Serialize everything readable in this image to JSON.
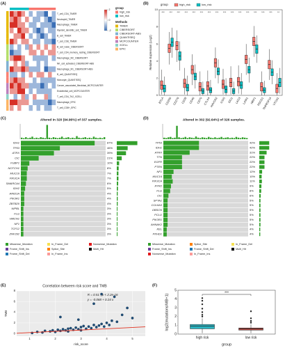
{
  "chart_data": [
    {
      "type": "heatmap",
      "panel": "(A)",
      "rows": [
        "T_cell_CD4_TIMER",
        "Neutrophil_TIMER",
        "Macrophage_TIMER",
        "Myeloid_dendritic_cell_TIMER",
        "B_cell_TIMER",
        "T_cell_CD8_TIMER",
        "B_cell_naive_CIBERSORT",
        "T_cell_CD4_memory_resting_CIBERSORT",
        "Macrophage_M2_CIBERSORT",
        "NK_cell_activated_CIBERSORT-ABS",
        "Macrophage_M1_CIBERSORT-ABS",
        "B_cell_QUANTISEQ",
        "Monocyte_QUANTISEQ",
        "Cancer_associated_fibroblast_MCPCOUNTER",
        "Endothelial_cell_MCPCOUNTER",
        "T_cell_CD4_Th2_XCELL",
        "Macrophage_EPIC",
        "T_cell_CD8+_EPIC"
      ],
      "values": [
        [
          2,
          1,
          2,
          1,
          0,
          -1,
          0,
          -1,
          -1,
          -2,
          0,
          -1
        ],
        [
          1,
          2,
          1,
          0,
          1,
          0,
          -1,
          -1,
          0,
          -1,
          -2,
          -1
        ],
        [
          2,
          2,
          1,
          1,
          0,
          -1,
          -1,
          0,
          -1,
          -1,
          -1,
          -2
        ],
        [
          1,
          0,
          2,
          1,
          1,
          0,
          -1,
          -2,
          -1,
          0,
          -1,
          -1
        ],
        [
          0,
          1,
          1,
          2,
          0,
          -1,
          0,
          -1,
          -2,
          -1,
          0,
          -1
        ],
        [
          2,
          1,
          0,
          1,
          1,
          0,
          -1,
          -1,
          0,
          -1,
          -1,
          -2
        ],
        [
          -1,
          0,
          -1,
          0,
          -1,
          1,
          0,
          1,
          0,
          1,
          0,
          1
        ],
        [
          -2,
          -1,
          -1,
          0,
          0,
          1,
          1,
          0,
          1,
          0,
          1,
          1
        ],
        [
          1,
          2,
          2,
          1,
          0,
          0,
          -1,
          -1,
          -1,
          -1,
          0,
          -1
        ],
        [
          0,
          1,
          0,
          1,
          -1,
          0,
          0,
          -1,
          0,
          -1,
          0,
          0
        ],
        [
          2,
          1,
          1,
          2,
          1,
          -1,
          -1,
          -1,
          0,
          -2,
          -1,
          -1
        ],
        [
          -1,
          -1,
          0,
          -1,
          0,
          1,
          0,
          1,
          1,
          0,
          1,
          0
        ],
        [
          1,
          2,
          1,
          1,
          0,
          0,
          -1,
          0,
          -1,
          -1,
          -1,
          -1
        ],
        [
          2,
          1,
          2,
          1,
          1,
          -1,
          -1,
          -1,
          -2,
          -1,
          0,
          -1
        ],
        [
          1,
          1,
          2,
          2,
          0,
          -1,
          0,
          -1,
          -1,
          -1,
          -1,
          0
        ],
        [
          0,
          -1,
          0,
          1,
          -1,
          0,
          1,
          0,
          0,
          1,
          -1,
          0
        ],
        [
          2,
          2,
          1,
          1,
          1,
          0,
          -1,
          -1,
          -1,
          -1,
          -2,
          -1
        ],
        [
          1,
          0,
          1,
          0,
          0,
          -1,
          0,
          -1,
          0,
          -1,
          -1,
          0
        ]
      ],
      "color_lim": [
        -2,
        2
      ],
      "color_ticks": [
        -2,
        0,
        2
      ],
      "column_groups": {
        "title": "group",
        "names": [
          "high_risk",
          "low_risk"
        ],
        "colors": [
          "#f8766d",
          "#00bfc4"
        ],
        "assignment": [
          1,
          1,
          1,
          1,
          1,
          0,
          0,
          0,
          0,
          0,
          0,
          0
        ]
      },
      "methods": {
        "title": "Methods",
        "names": [
          "TIMER",
          "CIBERSORT",
          "CIBERSORT-ABS",
          "QUANTISEQ",
          "MCPCOUNTER",
          "XCELL",
          "EPIC"
        ],
        "colors": [
          "#e6b800",
          "#b3de69",
          "#80b1d3",
          "#fb8072",
          "#bc80bd",
          "#8dd3c7",
          "#fdb462"
        ]
      },
      "row_methods": [
        0,
        0,
        0,
        0,
        0,
        0,
        1,
        1,
        1,
        2,
        2,
        3,
        3,
        4,
        4,
        5,
        6,
        6
      ]
    },
    {
      "type": "box",
      "panel": "(B)",
      "ylabel": "Relative Expression (Log2)",
      "legend_title": "group",
      "categories": [
        "BTLA",
        "CD200",
        "CD276",
        "CD28",
        "CD40",
        "CD70",
        "CTLA4",
        "HAVCR2",
        "ICOS",
        "IDO1",
        "LAG3",
        "LAIR1",
        "NRP1",
        "PDCD1",
        "TNFRSF14",
        "VTCN1"
      ],
      "significance": [
        "***",
        "***",
        "***",
        "***",
        "***",
        "***",
        "***",
        "***",
        "***",
        "***",
        "***",
        "***",
        "***",
        "***",
        "***",
        "**"
      ],
      "ylim": [
        0,
        10
      ],
      "yticks": [
        0,
        2,
        4,
        6,
        8,
        10
      ],
      "series": [
        {
          "name": "high_risk",
          "color": "#f8766d",
          "low": [
            0.1,
            3.6,
            3.9,
            0.1,
            1.2,
            0.0,
            0.0,
            2.0,
            0.1,
            0.1,
            0.2,
            2.4,
            4.5,
            0.0,
            1.8,
            0.0
          ],
          "q1": [
            0.7,
            5.0,
            5.3,
            0.9,
            2.5,
            0.5,
            0.6,
            3.3,
            0.8,
            1.0,
            1.1,
            3.7,
            5.8,
            0.5,
            3.1,
            0.3
          ],
          "median": [
            1.2,
            5.5,
            5.8,
            1.4,
            3.0,
            1.0,
            1.1,
            3.8,
            1.3,
            1.5,
            1.6,
            4.2,
            6.3,
            1.0,
            3.6,
            0.8
          ],
          "q3": [
            1.7,
            6.0,
            6.3,
            1.9,
            3.5,
            1.5,
            1.6,
            4.3,
            1.8,
            2.0,
            2.1,
            4.7,
            6.8,
            1.5,
            4.1,
            1.3
          ],
          "high": [
            3.0,
            7.4,
            7.6,
            3.2,
            4.8,
            2.8,
            2.9,
            5.6,
            3.1,
            3.4,
            3.5,
            6.0,
            8.1,
            2.8,
            5.4,
            2.6
          ]
        },
        {
          "name": "low_risk",
          "color": "#00bfc4",
          "low": [
            0.0,
            4.4,
            2.9,
            0.0,
            0.8,
            0.0,
            0.0,
            1.4,
            0.0,
            0.0,
            0.1,
            1.5,
            3.8,
            0.0,
            1.3,
            0.2
          ],
          "q1": [
            0.4,
            5.7,
            4.1,
            0.5,
            1.8,
            0.2,
            0.3,
            2.4,
            0.3,
            0.2,
            0.8,
            2.6,
            4.9,
            0.3,
            2.3,
            1.0
          ],
          "median": [
            0.8,
            6.2,
            4.6,
            0.9,
            2.2,
            0.5,
            0.6,
            2.8,
            0.7,
            0.5,
            1.2,
            3.0,
            5.4,
            0.6,
            2.7,
            1.5
          ],
          "q3": [
            1.2,
            6.7,
            5.1,
            1.3,
            2.6,
            0.8,
            0.9,
            3.2,
            1.1,
            0.8,
            1.6,
            3.4,
            5.9,
            0.9,
            3.1,
            2.0
          ],
          "high": [
            2.2,
            7.9,
            6.3,
            2.3,
            3.6,
            1.6,
            1.8,
            4.2,
            2.0,
            1.6,
            2.6,
            4.4,
            7.0,
            1.7,
            4.1,
            3.2
          ]
        }
      ]
    },
    {
      "type": "oncoplot",
      "panel": "(C)",
      "title": "Altered in 320 (94.96%) of 337 samples.",
      "genes": [
        "IDH1",
        "TP53",
        "ATRX",
        "CIC",
        "FUBP1",
        "NOTCH1",
        "MUC16",
        "PIK3CA",
        "SMARCA4",
        "IDH2",
        "ARID1A",
        "PIK3R1",
        "ZBTB20",
        "NIPBL",
        "FLG",
        "HMCN1",
        "NF1",
        "TCF12",
        "ZNF292"
      ],
      "values": [
        87,
        46,
        39,
        21,
        10,
        8,
        7,
        7,
        6,
        5,
        4,
        4,
        4,
        3,
        3,
        3,
        3,
        3,
        3
      ],
      "value_labels": [
        "87%",
        "46%",
        "39%",
        "21%",
        "10%",
        "8%",
        "7%",
        "7%",
        "6%",
        "5%",
        "4%",
        "4%",
        "4%",
        "3%",
        "3%",
        "3%",
        "3%",
        "3%",
        "3%"
      ],
      "tmb": [
        3,
        2,
        4,
        2,
        3,
        5,
        2,
        3,
        2,
        4,
        3,
        2,
        28,
        3,
        2,
        4,
        3,
        2,
        3,
        5,
        2,
        3,
        4,
        2,
        3,
        2,
        6,
        3,
        2,
        3,
        4,
        2,
        3,
        2,
        5,
        3,
        2,
        3,
        2,
        4
      ],
      "tmb_ylim": [
        0,
        30
      ],
      "legend": [
        {
          "name": "Missense_Mutation",
          "color": "#33a02c"
        },
        {
          "name": "Frame_Shift_Ins",
          "color": "#6a3d9a"
        },
        {
          "name": "Frame_Shift_Del",
          "color": "#1f78b4"
        },
        {
          "name": "In_Frame_Del",
          "color": "#f5e050"
        },
        {
          "name": "Splice_Site",
          "color": "#ff7f00"
        },
        {
          "name": "In_Frame_Ins",
          "color": "#fb9a99"
        },
        {
          "name": "Nonsense_Mutation",
          "color": "#e31a1c"
        },
        {
          "name": "Multi_Hit",
          "color": "#000000"
        }
      ]
    },
    {
      "type": "oncoplot",
      "panel": "(D)",
      "title": "Altered in 302 (92.64%) of 326 samples.",
      "genes": [
        "TP53",
        "IDH1",
        "ATRX",
        "TTN",
        "EGFR",
        "PTEN",
        "NF1",
        "MUC16",
        "PIK3CA",
        "RYR2",
        "FLG",
        "CIC",
        "SPTA1",
        "COL6A3",
        "OBSCN",
        "PCLO",
        "PIK3R1",
        "AHNAK2",
        "KEL",
        "PKHD1"
      ],
      "values": [
        42,
        42,
        31,
        22,
        22,
        22,
        12,
        10,
        11,
        9,
        8,
        6,
        5,
        5,
        5,
        5,
        5,
        5,
        4,
        4
      ],
      "value_labels": [
        "42%",
        "42%",
        "31%",
        "22%",
        "22%",
        "22%",
        "12%",
        "10%",
        "11%",
        "9%",
        "8%",
        "6%",
        "5%",
        "5%",
        "5%",
        "5%",
        "5%",
        "5%",
        "4%",
        "4%"
      ],
      "tmb": [
        4,
        3,
        5,
        6,
        3,
        4,
        35,
        5,
        3,
        4,
        6,
        3,
        5,
        4,
        3,
        7,
        4,
        3,
        5,
        4,
        3,
        6,
        4,
        3,
        5,
        3,
        4,
        6,
        3,
        4,
        5,
        3,
        4,
        3,
        6,
        4,
        3,
        5,
        4,
        3
      ],
      "tmb_ylim": [
        0,
        40
      ],
      "legend": [
        {
          "name": "Missense_Mutation",
          "color": "#33a02c"
        },
        {
          "name": "Frame_Shift_Ins",
          "color": "#6a3d9a"
        },
        {
          "name": "Nonsense_Mutation",
          "color": "#e31a1c"
        },
        {
          "name": "Splice_Site",
          "color": "#ff7f00"
        },
        {
          "name": "Frame_Shift_Del",
          "color": "#1f78b4"
        },
        {
          "name": "In_Frame_Ins",
          "color": "#fb9a99"
        },
        {
          "name": "In_Frame_Del",
          "color": "#f5e050"
        },
        {
          "name": "Multi_Hit",
          "color": "#000000"
        }
      ]
    },
    {
      "type": "scatter",
      "panel": "(E)",
      "title": "Correlation between risk score and TMB",
      "annotations": [
        "R = 0.51 , p < 2.2e-16",
        "y = -0.068 + 0.24 x"
      ],
      "xlabel": "risk_score",
      "ylabel": "TMB",
      "color": "#1f4e79",
      "grid": true,
      "x": [
        1.1,
        1.3,
        1.5,
        1.6,
        1.8,
        1.9,
        2.0,
        2.1,
        2.2,
        2.3,
        2.4,
        2.5,
        2.5,
        2.6,
        2.7,
        2.8,
        2.9,
        3.0,
        3.0,
        3.1,
        3.2,
        3.3,
        3.4,
        3.5,
        3.6,
        3.7,
        3.8,
        3.9,
        4.0,
        4.1,
        4.2,
        4.4,
        4.6,
        4.8,
        5.0,
        2.2,
        2.9,
        3.5,
        4.3,
        3.8
      ],
      "y": [
        0.1,
        0.3,
        0.2,
        0.5,
        0.4,
        0.6,
        0.3,
        0.7,
        0.5,
        0.8,
        0.6,
        0.9,
        0.4,
        1.0,
        0.7,
        1.1,
        0.8,
        1.2,
        0.6,
        1.4,
        0.9,
        1.3,
        1.0,
        1.6,
        1.2,
        1.5,
        1.8,
        1.3,
        2.0,
        1.6,
        2.4,
        2.2,
        3.5,
        4.8,
        2.9,
        3.1,
        2.6,
        5.6,
        6.9,
        7.4
      ],
      "fit": {
        "intercept": -0.068,
        "slope": 0.24,
        "color": "#e0301e"
      },
      "xlim": [
        0.5,
        5.5
      ],
      "xticks": [
        1,
        2,
        3,
        4,
        5
      ],
      "ylim": [
        -0.5,
        8
      ],
      "yticks": [
        0,
        2,
        4,
        6,
        8
      ]
    },
    {
      "type": "box",
      "panel": "(F)",
      "xlabel": "group",
      "ylabel": "log2(mutations/MB+1)",
      "categories": [
        "high risk",
        "low risk"
      ],
      "colors": [
        "#2bb3c0",
        "#c9504a"
      ],
      "significance": "***",
      "low": [
        0.1,
        0.1
      ],
      "q1": [
        0.6,
        0.45
      ],
      "median": [
        0.9,
        0.6
      ],
      "q3": [
        1.1,
        0.7
      ],
      "high": [
        1.8,
        1.1
      ],
      "outliers": [
        [
          2.0,
          2.2,
          2.5,
          2.9,
          3.4,
          3.8,
          4.1
        ],
        [
          1.3,
          1.5,
          1.8,
          2.6
        ]
      ],
      "ylim": [
        0,
        5
      ],
      "yticks": [
        0,
        1,
        2,
        3,
        4,
        5
      ]
    }
  ]
}
